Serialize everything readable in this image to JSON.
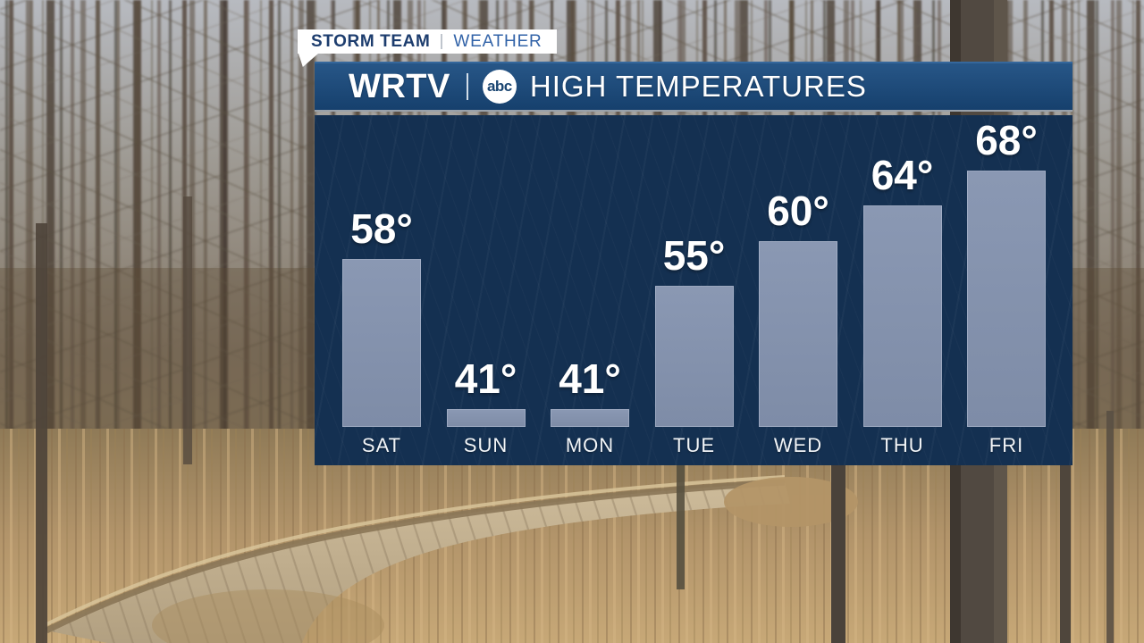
{
  "badge": {
    "team": "STORM TEAM",
    "section": "WEATHER"
  },
  "header": {
    "station": "WRTV",
    "network": "abc",
    "title": "HIGH TEMPERATURES"
  },
  "chart_data": {
    "type": "bar",
    "title": "HIGH TEMPERATURES",
    "categories": [
      "SAT",
      "SUN",
      "MON",
      "TUE",
      "WED",
      "THU",
      "FRI"
    ],
    "values": [
      58,
      41,
      41,
      55,
      60,
      64,
      68
    ],
    "value_suffix": "°",
    "xlabel": "",
    "ylabel": "",
    "ylim": [
      39,
      70
    ],
    "grid": false,
    "legend": false,
    "bar_color": "#7e8ca7",
    "panel_background": "#143051",
    "label_color": "#ffffff"
  },
  "colors": {
    "header_gradient_top": "#275687",
    "header_gradient_bottom": "#16406d",
    "panel_navy": "#143051",
    "bar_fill": "#7e8ca7",
    "badge_background": "#ffffff",
    "badge_team_text": "#1d3d6e",
    "badge_section_text": "#3263a8"
  }
}
